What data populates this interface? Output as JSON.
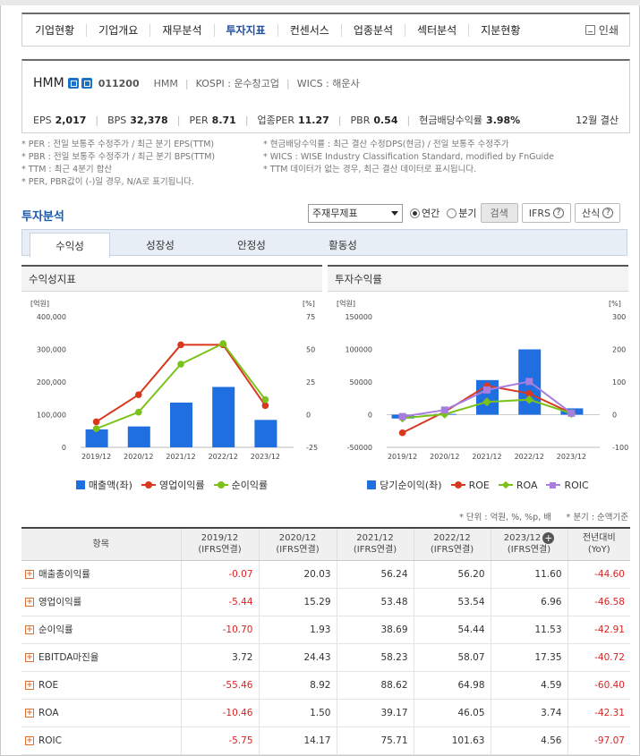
{
  "nav": {
    "items": [
      "기업현황",
      "기업개요",
      "재무분석",
      "투자지표",
      "컨센서스",
      "업종분석",
      "섹터분석",
      "지분현황"
    ],
    "active_index": 3,
    "print_label": "인쇄"
  },
  "company": {
    "name": "HMM",
    "code": "011200",
    "meta": [
      "HMM",
      "KOSPI : 운수창고업",
      "WICS : 해운사"
    ],
    "metrics": [
      {
        "label": "EPS",
        "value": "2,017"
      },
      {
        "label": "BPS",
        "value": "32,378"
      },
      {
        "label": "PER",
        "value": "8.71"
      },
      {
        "label": "업종PER",
        "value": "11.27"
      },
      {
        "label": "PBR",
        "value": "0.54"
      },
      {
        "label": "현금배당수익률",
        "value": "3.98%"
      }
    ],
    "settlement": "12월 결산"
  },
  "notes": {
    "left": [
      "* PER : 전일 보통주 수정주가 / 최근 분기 EPS(TTM)",
      "* PBR : 전일 보통주 수정주가 / 최근 분기 BPS(TTM)",
      "* TTM : 최근 4분기 합산",
      "* PER, PBR값이 (-)일 경우, N/A로 표기됩니다."
    ],
    "right": [
      "* 현금배당수익률 : 최근 결산 수정DPS(현금) / 전일 보통주 수정주가",
      "* WICS : WISE Industry Classification Standard, modified by FnGuide",
      "* TTM 데이터가 없는 경우, 최근 결산 데이터로 표시됩니다."
    ]
  },
  "section": {
    "title": "투자분석",
    "select_value": "주재무제표",
    "radio_annual": "연간",
    "radio_quarter": "분기",
    "search_label": "검색",
    "ifrs_label": "IFRS",
    "calc_label": "산식"
  },
  "tabs": [
    "수익성",
    "성장성",
    "안정성",
    "활동성"
  ],
  "charts": {
    "left_title": "수익성지표",
    "right_title": "투자수익률"
  },
  "chart_data": [
    {
      "type": "bar",
      "title": "수익성지표",
      "categories": [
        "2019/12",
        "2020/12",
        "2021/12",
        "2022/12",
        "2023/12"
      ],
      "y_left": {
        "unit": "[억원]",
        "ticks": [
          "400,000",
          "300,000",
          "200,000",
          "100,000",
          "0"
        ],
        "range": [
          0,
          400000
        ]
      },
      "y_right": {
        "unit": "[%]",
        "ticks": [
          "75",
          "50",
          "25",
          "0",
          "-25"
        ],
        "range": [
          -25,
          75
        ]
      },
      "series": [
        {
          "name": "매출액(좌)",
          "type": "bar",
          "axis": "left",
          "color": "#1f6fe0",
          "values": [
            55000,
            64000,
            137000,
            185000,
            84000
          ]
        },
        {
          "name": "영업이익률",
          "type": "line",
          "axis": "right",
          "color": "#d9381e",
          "values": [
            -5.44,
            15.29,
            53.48,
            53.54,
            6.96
          ]
        },
        {
          "name": "순이익률",
          "type": "line",
          "axis": "right",
          "color": "#7ac21a",
          "values": [
            -10.7,
            1.93,
            38.69,
            54.44,
            11.53
          ]
        }
      ],
      "legend": "bottom"
    },
    {
      "type": "bar",
      "title": "투자수익률",
      "categories": [
        "2019/12",
        "2020/12",
        "2021/12",
        "2022/12",
        "2023/12"
      ],
      "y_left": {
        "unit": "[억원]",
        "ticks": [
          "150000",
          "100000",
          "50000",
          "0",
          "-50000"
        ],
        "range": [
          -50000,
          150000
        ]
      },
      "y_right": {
        "unit": "[%]",
        "ticks": [
          "300",
          "200",
          "100",
          "0",
          "-100"
        ],
        "range": [
          -100,
          300
        ]
      },
      "series": [
        {
          "name": "당기순이익(좌)",
          "type": "bar",
          "axis": "left",
          "color": "#1f6fe0",
          "values": [
            -5900,
            1200,
            53000,
            100000,
            9700
          ]
        },
        {
          "name": "ROE",
          "type": "line",
          "axis": "right",
          "color": "#d9381e",
          "values": [
            -55.46,
            8.92,
            88.62,
            64.98,
            4.59
          ]
        },
        {
          "name": "ROA",
          "type": "line",
          "axis": "right",
          "color": "#7ac21a",
          "values": [
            -10.46,
            1.5,
            39.17,
            46.05,
            3.74
          ]
        },
        {
          "name": "ROIC",
          "type": "line",
          "axis": "right",
          "color": "#a77de0",
          "values": [
            -5.75,
            14.17,
            75.71,
            101.63,
            4.56
          ]
        }
      ],
      "legend": "bottom"
    }
  ],
  "table_note": {
    "unit": "* 단위 : 억원, %, %p, 배",
    "quarter": "* 분기 : 순액기준"
  },
  "table": {
    "headers": [
      {
        "l1": "항목",
        "l2": ""
      },
      {
        "l1": "2019/12",
        "l2": "(IFRS연결)"
      },
      {
        "l1": "2020/12",
        "l2": "(IFRS연결)"
      },
      {
        "l1": "2021/12",
        "l2": "(IFRS연결)"
      },
      {
        "l1": "2022/12",
        "l2": "(IFRS연결)"
      },
      {
        "l1": "2023/12",
        "l2": "(IFRS연결)"
      },
      {
        "l1": "전년대비",
        "l2": "(YoY)"
      }
    ],
    "rows": [
      {
        "label": "매출총이익률",
        "values": [
          "-0.07",
          "20.03",
          "56.24",
          "56.20",
          "11.60",
          "-44.60"
        ]
      },
      {
        "label": "영업이익률",
        "values": [
          "-5.44",
          "15.29",
          "53.48",
          "53.54",
          "6.96",
          "-46.58"
        ]
      },
      {
        "label": "순이익률",
        "values": [
          "-10.70",
          "1.93",
          "38.69",
          "54.44",
          "11.53",
          "-42.91"
        ]
      },
      {
        "label": "EBITDA마진율",
        "values": [
          "3.72",
          "24.43",
          "58.23",
          "58.07",
          "17.35",
          "-40.72"
        ]
      },
      {
        "label": "ROE",
        "values": [
          "-55.46",
          "8.92",
          "88.62",
          "64.98",
          "4.59",
          "-60.40"
        ]
      },
      {
        "label": "ROA",
        "values": [
          "-10.46",
          "1.50",
          "39.17",
          "46.05",
          "3.74",
          "-42.31"
        ]
      },
      {
        "label": "ROIC",
        "values": [
          "-5.75",
          "14.17",
          "75.71",
          "101.63",
          "4.56",
          "-97.07"
        ]
      }
    ]
  }
}
